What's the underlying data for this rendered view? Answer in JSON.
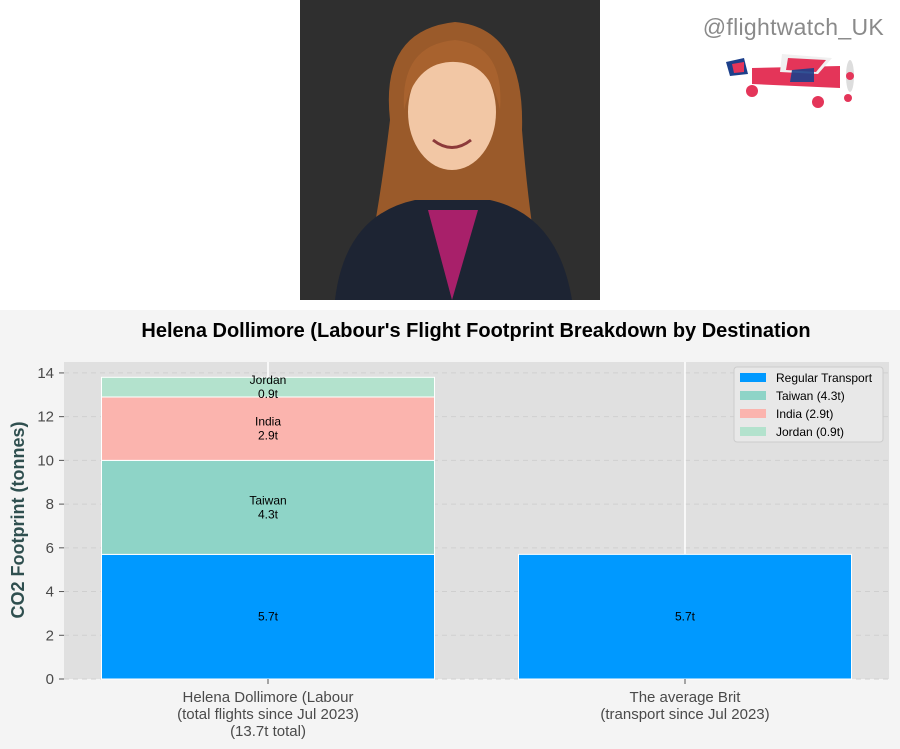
{
  "header": {
    "handle": "@flightwatch_UK"
  },
  "images": {
    "photo": "portrait-photo",
    "logo": "union-jack-plane-icon"
  },
  "chart_data": {
    "type": "bar",
    "stacked": true,
    "title": "Helena Dollimore (Labour's Flight Footprint Breakdown by Destination",
    "xlabel": "",
    "ylabel": "CO2 Footprint (tonnes)",
    "ylim": [
      0,
      14.5
    ],
    "yticks": [
      0,
      2,
      4,
      6,
      8,
      10,
      12,
      14
    ],
    "grid": true,
    "legend_position": "top-right",
    "categories": [
      [
        "Helena Dollimore (Labour",
        "(total flights since Jul 2023)",
        "(13.7t total)"
      ],
      [
        "The average Brit",
        "(transport since Jul 2023)"
      ]
    ],
    "series": [
      {
        "name": "Regular Transport",
        "legend": "Regular Transport",
        "color": "#0099ff",
        "values": [
          5.7,
          5.7
        ],
        "labels": [
          [
            "5.7t"
          ],
          [
            "5.7t"
          ]
        ]
      },
      {
        "name": "Taiwan",
        "legend": "Taiwan (4.3t)",
        "color": "#8ed4c7",
        "values": [
          4.3,
          0
        ],
        "labels": [
          [
            "Taiwan",
            "4.3t"
          ],
          null
        ]
      },
      {
        "name": "India",
        "legend": "India (2.9t)",
        "color": "#fbb4ae",
        "values": [
          2.9,
          0
        ],
        "labels": [
          [
            "India",
            "2.9t"
          ],
          null
        ]
      },
      {
        "name": "Jordan",
        "legend": "Jordan (0.9t)",
        "color": "#b3e2cd",
        "values": [
          0.9,
          0
        ],
        "labels": [
          [
            "Jordan",
            "0.9t"
          ],
          null
        ]
      }
    ]
  }
}
